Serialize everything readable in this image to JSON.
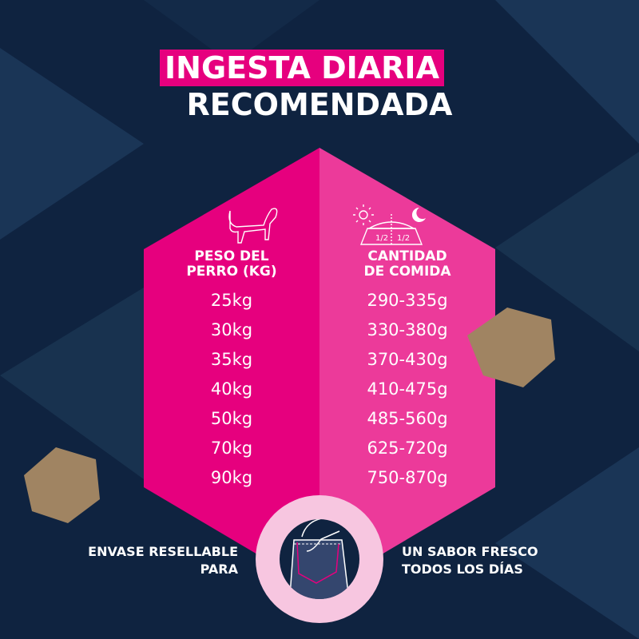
{
  "title": {
    "line1": "INGESTA DIARIA",
    "line2": "RECOMENDADA"
  },
  "colors": {
    "background": "#0f2340",
    "magenta": "#e6007e",
    "pink": "#ec3a9a",
    "ring": "#f7c6e0"
  },
  "table": {
    "weight_header": [
      "PESO DEL",
      "PERRO (KG)"
    ],
    "amount_header": [
      "CANTIDAD",
      "DE COMIDA"
    ],
    "bowl_labels": [
      "1/2",
      "1/2"
    ],
    "icons": [
      "dog-icon",
      "sun-icon",
      "moon-icon",
      "food-bowl-icon"
    ],
    "rows": [
      {
        "weight": "25kg",
        "amount": "290-335g"
      },
      {
        "weight": "30kg",
        "amount": "330-380g"
      },
      {
        "weight": "35kg",
        "amount": "370-430g"
      },
      {
        "weight": "40kg",
        "amount": "410-475g"
      },
      {
        "weight": "50kg",
        "amount": "485-560g"
      },
      {
        "weight": "70kg",
        "amount": "625-720g"
      },
      {
        "weight": "90kg",
        "amount": "750-870g"
      }
    ]
  },
  "features": {
    "left": [
      "ENVASE RESELLABLE",
      "PARA"
    ],
    "right": [
      "UN SABOR FRESCO",
      "TODOS LOS DÍAS"
    ],
    "icon": "resealable-bag-icon"
  }
}
